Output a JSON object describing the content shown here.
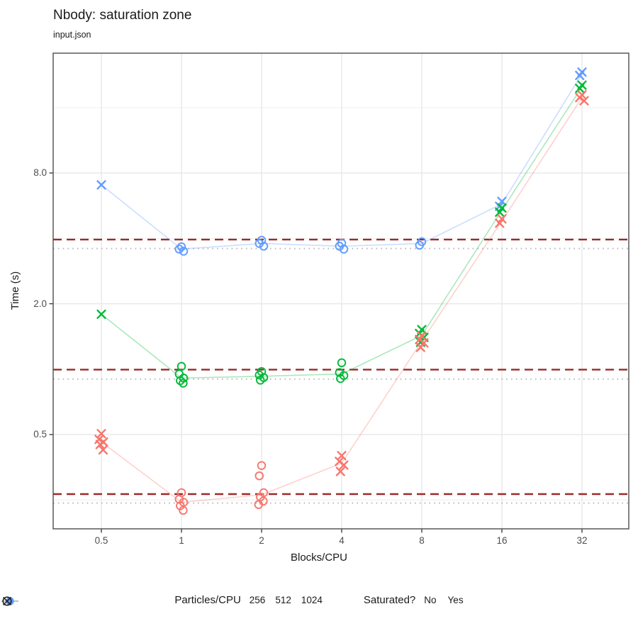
{
  "chart_data": {
    "type": "scatter",
    "title": "Nbody: saturation zone",
    "subtitle": "input.json",
    "xlabel": "Blocks/CPU",
    "ylabel": "Time (s)",
    "x_scale": "log2",
    "y_scale": "log2",
    "grid": true,
    "x_ticks": {
      "values": [
        0.5,
        1,
        2,
        4,
        8,
        16,
        32
      ],
      "labels": [
        "0.5",
        "1",
        "2",
        "4",
        "8",
        "16",
        "32"
      ]
    },
    "y_ticks": {
      "values": [
        8.0,
        2.0,
        0.5
      ],
      "labels": [
        "8.0",
        "2.0",
        "0.5"
      ]
    },
    "minor_gridlines_y": [
      16,
      4,
      1,
      0.25
    ],
    "ref_lines": {
      "dashed": {
        "color": "#9B2A2A",
        "values": [
          3.95,
          0.995,
          0.266
        ]
      },
      "dotted": {
        "color": "#BABABA",
        "values": [
          3.59,
          0.9,
          0.242
        ]
      }
    },
    "series": [
      {
        "name": "1024",
        "color": "#619CFF",
        "clusters": [
          {
            "x": 0.5,
            "saturated": false,
            "times": [
              7.05
            ]
          },
          {
            "x": 1,
            "saturated": true,
            "times": [
              3.66,
              3.57,
              3.49
            ]
          },
          {
            "x": 2,
            "saturated": true,
            "times": [
              3.92,
              3.79,
              3.68
            ]
          },
          {
            "x": 4,
            "saturated": true,
            "times": [
              3.8,
              3.68,
              3.57
            ]
          },
          {
            "x": 8,
            "saturated": true,
            "times": [
              3.86,
              3.72
            ]
          },
          {
            "x": 16,
            "saturated": false,
            "times": [
              5.92,
              5.62
            ]
          },
          {
            "x": 32,
            "saturated": false,
            "times": [
              23.3,
              22.5
            ]
          }
        ]
      },
      {
        "name": "512",
        "color": "#00BA38",
        "clusters": [
          {
            "x": 0.5,
            "saturated": false,
            "times": [
              1.79
            ]
          },
          {
            "x": 1,
            "saturated": true,
            "times": [
              1.03,
              0.95,
              0.91,
              0.885,
              0.862
            ]
          },
          {
            "x": 2,
            "saturated": true,
            "times": [
              0.975,
              0.94,
              0.915,
              0.89
            ]
          },
          {
            "x": 4,
            "saturated": true,
            "times": [
              1.07,
              0.965,
              0.935,
              0.905
            ]
          },
          {
            "x": 8,
            "saturated": false,
            "times": [
              1.52,
              1.46,
              1.4,
              1.33
            ]
          },
          {
            "x": 16,
            "saturated": false,
            "times": [
              5.52,
              5.28
            ]
          },
          {
            "x": 32,
            "saturated": false,
            "times": [
              20.3,
              19.6
            ]
          }
        ]
      },
      {
        "name": "256",
        "color": "#F8766D",
        "clusters": [
          {
            "x": 0.5,
            "saturated": false,
            "times": [
              0.505,
              0.475,
              0.462,
              0.45,
              0.425
            ]
          },
          {
            "x": 1,
            "saturated": true,
            "times": [
              0.27,
              0.252,
              0.244,
              0.235,
              0.224
            ]
          },
          {
            "x": 2,
            "saturated": true,
            "times": [
              0.36,
              0.323,
              0.27,
              0.258,
              0.247,
              0.238
            ]
          },
          {
            "x": 4,
            "saturated": false,
            "times": [
              0.4,
              0.376,
              0.362,
              0.338
            ]
          },
          {
            "x": 8,
            "saturated": false,
            "times": [
              1.42,
              1.37,
              1.32,
              1.26
            ]
          },
          {
            "x": 16,
            "saturated": false,
            "times": [
              4.92,
              4.7
            ]
          },
          {
            "x": 32,
            "saturated": false,
            "times": [
              18.3,
              17.8,
              17.2
            ]
          }
        ]
      }
    ],
    "legend": {
      "color_title": "Particles/CPU",
      "color_items": [
        {
          "label": "256",
          "color": "#F8766D"
        },
        {
          "label": "512",
          "color": "#00BA38"
        },
        {
          "label": "1024",
          "color": "#619CFF"
        }
      ],
      "shape_title": "Saturated?",
      "shape_items": [
        {
          "label": "No",
          "shape": "x"
        },
        {
          "label": "Yes",
          "shape": "circle"
        }
      ]
    }
  }
}
